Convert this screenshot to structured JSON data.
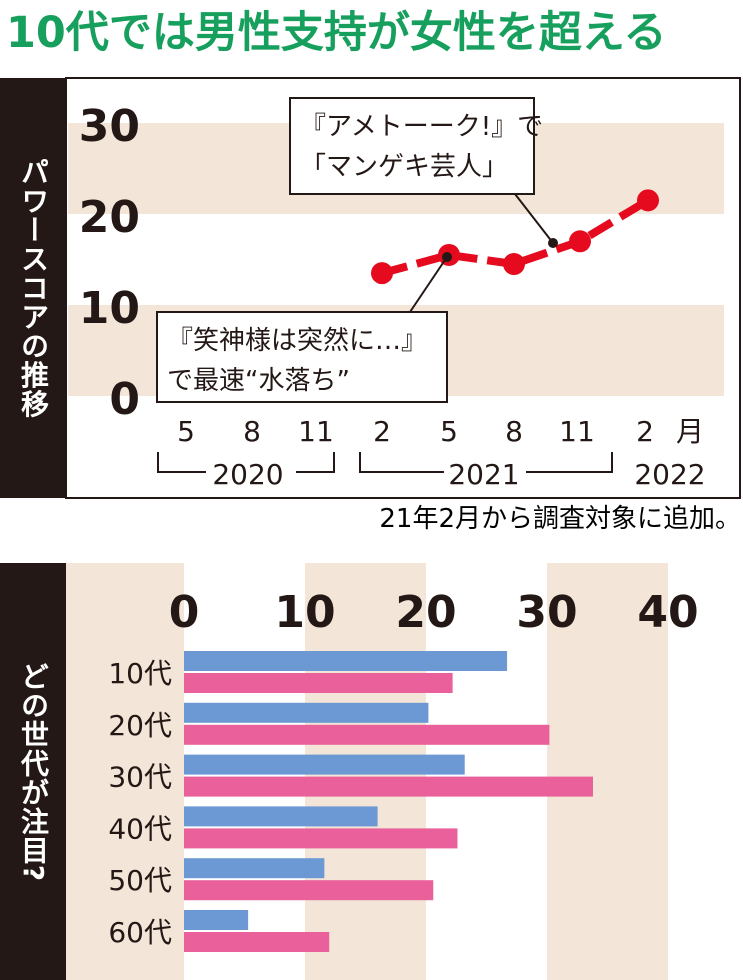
{
  "title": "10代では男性支持が女性を超える",
  "colors": {
    "title": "#17a05d",
    "band": "#f3e6d8",
    "line": "#e60a1f",
    "male": "#6c98d4",
    "female": "#e9609a",
    "panel_label_bg": "#231815"
  },
  "chart_data": [
    {
      "type": "line",
      "ylabel": "パワースコアの推移",
      "ylim": [
        0,
        30
      ],
      "yticks": [
        "0",
        "10",
        "20",
        "30"
      ],
      "month_ticks": [
        "5",
        "8",
        "11",
        "2",
        "5",
        "8",
        "11",
        "2"
      ],
      "month_unit": "月",
      "year_labels": [
        "2020",
        "2021",
        "2022"
      ],
      "series": [
        {
          "x": [
            "2021-02",
            "2021-05",
            "2021-08",
            "2021-11",
            "2022-02"
          ],
          "values": [
            13.5,
            15.5,
            14.5,
            17,
            21.5
          ]
        }
      ],
      "annotations": [
        {
          "lines": [
            "『アメトーーク!』で",
            "「マンゲキ芸人」"
          ],
          "target": "2021-11"
        },
        {
          "lines": [
            "『笑神様は突然に…』",
            "で最速“水落ち”"
          ],
          "target": "2021-05"
        }
      ],
      "note": "21年2月から調査対象に追加。"
    },
    {
      "type": "bar",
      "orientation": "horizontal",
      "ylabel": "どの世代が注目?",
      "xlim": [
        0,
        40
      ],
      "xticks": [
        "0",
        "10",
        "20",
        "30",
        "40"
      ],
      "categories": [
        "10代",
        "20代",
        "30代",
        "40代",
        "50代",
        "60代"
      ],
      "series": [
        {
          "key": "male",
          "values": [
            26.7,
            20.2,
            23.2,
            16,
            11.6,
            5.3
          ]
        },
        {
          "key": "female",
          "values": [
            22.2,
            30.2,
            33.8,
            22.6,
            20.6,
            12
          ]
        }
      ]
    }
  ]
}
